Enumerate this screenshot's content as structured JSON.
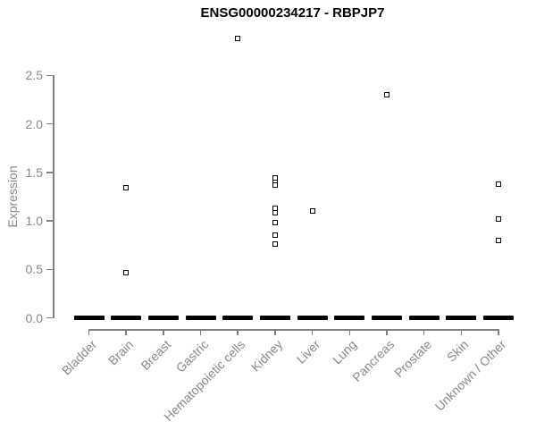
{
  "chart_data": {
    "type": "scatter",
    "title": "ENSG00000234217 - RBPJP7",
    "xlabel": "",
    "ylabel": "Expression",
    "ylim": [
      0.0,
      2.5
    ],
    "yticks": [
      0,
      0.5,
      1,
      1.5,
      2,
      2.5
    ],
    "grid": false,
    "legend": "none",
    "marker": "small open square",
    "categories": [
      "Bladder",
      "Brain",
      "Breast",
      "Gastric",
      "Hematopoietic cells",
      "Kidney",
      "Liver",
      "Lung",
      "Pancreas",
      "Prostate",
      "Skin",
      "Unknown / Other"
    ],
    "series": [
      {
        "name": "Expression",
        "points": [
          {
            "category": "Brain",
            "value": 1.34
          },
          {
            "category": "Brain",
            "value": 0.47
          },
          {
            "category": "Hematopoietic cells",
            "value": 2.88
          },
          {
            "category": "Kidney",
            "value": 1.44
          },
          {
            "category": "Kidney",
            "value": 1.4
          },
          {
            "category": "Kidney",
            "value": 1.37
          },
          {
            "category": "Kidney",
            "value": 1.13
          },
          {
            "category": "Kidney",
            "value": 1.08
          },
          {
            "category": "Kidney",
            "value": 0.98
          },
          {
            "category": "Kidney",
            "value": 0.85
          },
          {
            "category": "Kidney",
            "value": 0.76
          },
          {
            "category": "Liver",
            "value": 1.1
          },
          {
            "category": "Pancreas",
            "value": 2.3
          },
          {
            "category": "Unknown / Other",
            "value": 1.38
          },
          {
            "category": "Unknown / Other",
            "value": 1.02
          },
          {
            "category": "Unknown / Other",
            "value": 0.8
          }
        ]
      }
    ],
    "zero_clusters": {
      "value": 0,
      "note": "dense overlapping points at expression 0 in every category, rendered as a thick black dash",
      "categories": [
        "Bladder",
        "Brain",
        "Breast",
        "Gastric",
        "Hematopoietic cells",
        "Kidney",
        "Liver",
        "Lung",
        "Pancreas",
        "Prostate",
        "Skin",
        "Unknown / Other"
      ]
    },
    "colors": {
      "points": "#000000",
      "axis": "#7f7f7f",
      "axis_text": "#8a8a8a",
      "title_text": "#000000",
      "background": "#ffffff"
    }
  }
}
